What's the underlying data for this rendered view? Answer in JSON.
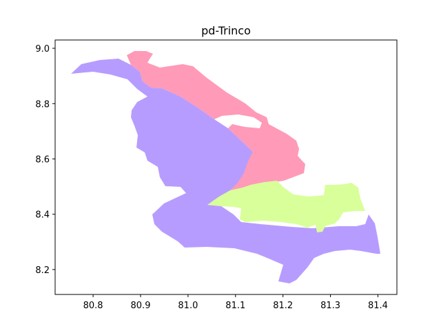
{
  "chart_data": {
    "type": "map",
    "title": "pd-Trinco",
    "xlim": [
      80.72,
      81.44
    ],
    "ylim": [
      8.11,
      9.03
    ],
    "x_ticks": [
      "80.8",
      "80.9",
      "81.0",
      "81.1",
      "81.2",
      "81.3",
      "81.4"
    ],
    "y_ticks": [
      "8.2",
      "8.4",
      "8.6",
      "8.8",
      "9.0"
    ],
    "regions": [
      {
        "color": "#b79cff"
      },
      {
        "color": "#ff9ab8"
      },
      {
        "color": "#d9ff9a"
      }
    ]
  }
}
